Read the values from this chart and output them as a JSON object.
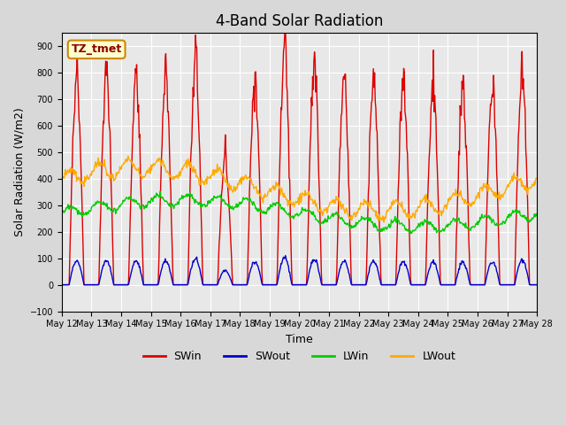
{
  "title": "4-Band Solar Radiation",
  "xlabel": "Time",
  "ylabel": "Solar Radiation (W/m2)",
  "ylim": [
    -100,
    950
  ],
  "yticks": [
    -100,
    0,
    100,
    200,
    300,
    400,
    500,
    600,
    700,
    800,
    900
  ],
  "annotation_text": "TZ_tmet",
  "annotation_bg": "#ffffcc",
  "annotation_border": "#cc8800",
  "series_colors": {
    "SWin": "#dd0000",
    "SWout": "#0000cc",
    "LWin": "#00cc00",
    "LWout": "#ffaa00"
  },
  "legend_entries": [
    "SWin",
    "SWout",
    "LWin",
    "LWout"
  ],
  "background_color": "#e8e8e8",
  "plot_bg": "#e8e8e8",
  "grid_color": "#ffffff",
  "n_days": 16,
  "start_day": 12,
  "points_per_day": 48
}
